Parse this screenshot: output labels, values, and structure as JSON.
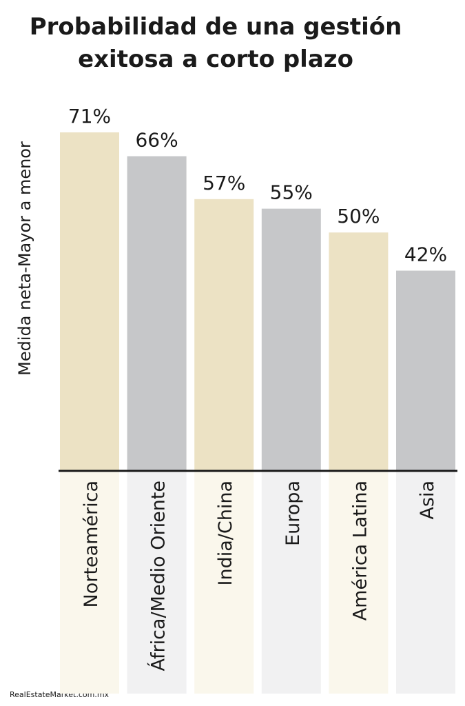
{
  "chart_data": {
    "type": "bar",
    "title": [
      "Probabilidad de una gestión",
      "exitosa a corto plazo"
    ],
    "y_label": "Medida neta-Mayor a menor",
    "categories": [
      "Norteamérica",
      "África/Medio Oriente",
      "India/China",
      "Europa",
      "América Latina",
      "Asia"
    ],
    "values": [
      71,
      66,
      57,
      55,
      50,
      42
    ],
    "value_labels": [
      "71%",
      "66%",
      "57%",
      "55%",
      "50%",
      "42%"
    ],
    "colors": [
      "#ece2c4",
      "#c6c7c9",
      "#ece2c4",
      "#c6c7c9",
      "#ece2c4",
      "#c6c7c9"
    ],
    "panel_colors": [
      "#faf7ec",
      "#f1f1f2",
      "#faf7ec",
      "#f1f1f2",
      "#faf7ec",
      "#f1f1f2"
    ],
    "source": "RealEstateMarket.com.mx"
  }
}
